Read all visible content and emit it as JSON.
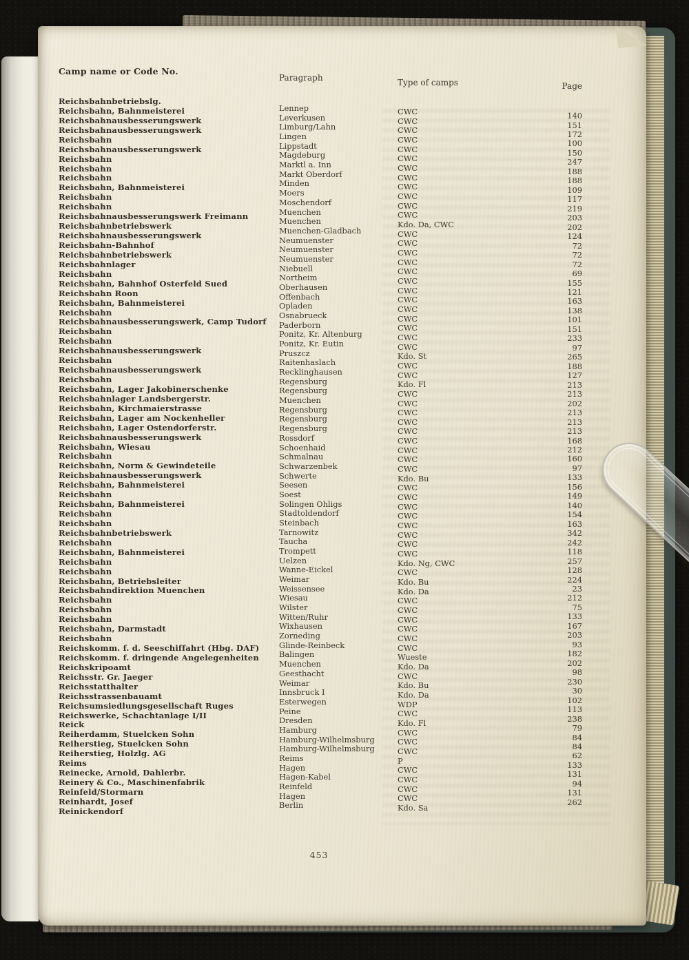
{
  "page": {
    "header": {
      "col_camp": "Camp name or Code No.",
      "col_paragraph": "Paragraph",
      "col_type": "Type of camps",
      "col_page": "Page"
    },
    "page_number": "453"
  },
  "table": {
    "rows": [
      {
        "camp": "Reichsbahnbetriebslg.",
        "paragraph": "Lennep",
        "type": "CWC",
        "page": "140"
      },
      {
        "camp": "Reichsbahn, Bahnmeisterei",
        "paragraph": "Leverkusen",
        "type": "CWC",
        "page": "151"
      },
      {
        "camp": "Reichsbahnausbesserungswerk",
        "paragraph": "Limburg/Lahn",
        "type": "CWC",
        "page": "172"
      },
      {
        "camp": "Reichsbahnausbesserungswerk",
        "paragraph": "Lingen",
        "type": "CWC",
        "page": "100"
      },
      {
        "camp": "Reichsbahn",
        "paragraph": "Lippstadt",
        "type": "CWC",
        "page": "150"
      },
      {
        "camp": "Reichsbahnausbesserungswerk",
        "paragraph": "Magdeburg",
        "type": "CWC",
        "page": "247"
      },
      {
        "camp": "Reichsbahn",
        "paragraph": "Marktl a. Inn",
        "type": "CWC",
        "page": "188"
      },
      {
        "camp": "Reichsbahn",
        "paragraph": "Markt Oberdorf",
        "type": "CWC",
        "page": "188"
      },
      {
        "camp": "Reichsbahn",
        "paragraph": "Minden",
        "type": "CWC",
        "page": "109"
      },
      {
        "camp": "Reichsbahn, Bahnmeisterei",
        "paragraph": "Moers",
        "type": "CWC",
        "page": "117"
      },
      {
        "camp": "Reichsbahn",
        "paragraph": "Moschendorf",
        "type": "CWC",
        "page": "219"
      },
      {
        "camp": "Reichsbahn",
        "paragraph": "Muenchen",
        "type": "CWC",
        "page": "203"
      },
      {
        "camp": "Reichsbahnausbesserungswerk Freimann",
        "paragraph": "Muenchen",
        "type": "Kdo. Da, CWC",
        "page": "202"
      },
      {
        "camp": "Reichsbahnbetriebswerk",
        "paragraph": "Muenchen-Gladbach",
        "type": "CWC",
        "page": "124"
      },
      {
        "camp": "Reichsbahnausbesserungswerk",
        "paragraph": "Neumuenster",
        "type": "CWC",
        "page": "72"
      },
      {
        "camp": "Reichsbahn-Bahnhof",
        "paragraph": "Neumuenster",
        "type": "CWC",
        "page": "72"
      },
      {
        "camp": "Reichsbahnbetriebswerk",
        "paragraph": "Neumuenster",
        "type": "CWC",
        "page": "72"
      },
      {
        "camp": "Reichsbahnlager",
        "paragraph": "Niebuell",
        "type": "CWC",
        "page": "69"
      },
      {
        "camp": "Reichsbahn",
        "paragraph": "Northeim",
        "type": "CWC",
        "page": "155"
      },
      {
        "camp": "Reichsbahn, Bahnhof Osterfeld Sued",
        "paragraph": "Oberhausen",
        "type": "CWC",
        "page": "121"
      },
      {
        "camp": "Reichsbahn Roon",
        "paragraph": "Offenbach",
        "type": "CWC",
        "page": "163"
      },
      {
        "camp": "Reichsbahn, Bahnmeisterei",
        "paragraph": "Opladen",
        "type": "CWC",
        "page": "138"
      },
      {
        "camp": "Reichsbahn",
        "paragraph": "Osnabrueck",
        "type": "CWC",
        "page": "101"
      },
      {
        "camp": "Reichsbahnausbesserungswerk, Camp Tudorf",
        "paragraph": "Paderborn",
        "type": "CWC",
        "page": "151"
      },
      {
        "camp": "Reichsbahn",
        "paragraph": "Ponitz, Kr. Altenburg",
        "type": "CWC",
        "page": "233"
      },
      {
        "camp": "Reichsbahn",
        "paragraph": "Ponitz, Kr. Eutin",
        "type": "CWC",
        "page": "97"
      },
      {
        "camp": "Reichsbahnausbesserungswerk",
        "paragraph": "Pruszcz",
        "type": "Kdo. St",
        "page": "265"
      },
      {
        "camp": "Reichsbahn",
        "paragraph": "Raitenhaslach",
        "type": "CWC",
        "page": "188"
      },
      {
        "camp": "Reichsbahnausbesserungswerk",
        "paragraph": "Recklinghausen",
        "type": "CWC",
        "page": "127"
      },
      {
        "camp": "Reichsbahn",
        "paragraph": "Regensburg",
        "type": "Kdo. Fl",
        "page": "213"
      },
      {
        "camp": "Reichsbahn, Lager Jakobinerschenke",
        "paragraph": "Regensburg",
        "type": "CWC",
        "page": "213"
      },
      {
        "camp": "Reichsbahnlager Landsbergerstr.",
        "paragraph": "Muenchen",
        "type": "CWC",
        "page": "202"
      },
      {
        "camp": "Reichsbahn, Kirchmaierstrasse",
        "paragraph": "Regensburg",
        "type": "CWC",
        "page": "213"
      },
      {
        "camp": "Reichsbahn, Lager am Nockenheller",
        "paragraph": "Regensburg",
        "type": "CWC",
        "page": "213"
      },
      {
        "camp": "Reichsbahn, Lager Ostendorferstr.",
        "paragraph": "Regensburg",
        "type": "CWC",
        "page": "213"
      },
      {
        "camp": "Reichsbahnausbesserungswerk",
        "paragraph": "Rossdorf",
        "type": "CWC",
        "page": "168"
      },
      {
        "camp": "Reichsbahn, Wiesau",
        "paragraph": "Schoenhaid",
        "type": "CWC",
        "page": "212"
      },
      {
        "camp": "Reichsbahn",
        "paragraph": "Schmalnau",
        "type": "CWC",
        "page": "160"
      },
      {
        "camp": "Reichsbahn, Norm & Gewindeteile",
        "paragraph": "Schwarzenbek",
        "type": "CWC",
        "page": "97"
      },
      {
        "camp": "Reichsbahnausbesserungswerk",
        "paragraph": "Schwerte",
        "type": "Kdo. Bu",
        "page": "133"
      },
      {
        "camp": "Reichsbahn, Bahnmeisterei",
        "paragraph": "Seesen",
        "type": "CWC",
        "page": "156"
      },
      {
        "camp": "Reichsbahn",
        "paragraph": "Soest",
        "type": "CWC",
        "page": "149"
      },
      {
        "camp": "Reichsbahn, Bahnmeisterei",
        "paragraph": "Solingen Ohligs",
        "type": "CWC",
        "page": "140"
      },
      {
        "camp": "Reichsbahn",
        "paragraph": "Stadtoldendorf",
        "type": "CWC",
        "page": "154"
      },
      {
        "camp": "Reichsbahn",
        "paragraph": "Steinbach",
        "type": "CWC",
        "page": "163"
      },
      {
        "camp": "Reichsbahnbetriebswerk",
        "paragraph": "Tarnowitz",
        "type": "CWC",
        "page": "342"
      },
      {
        "camp": "Reichsbahn",
        "paragraph": "Taucha",
        "type": "CWC",
        "page": "242"
      },
      {
        "camp": "Reichsbahn, Bahnmeisterei",
        "paragraph": "Trompett",
        "type": "CWC",
        "page": "118"
      },
      {
        "camp": "Reichsbahn",
        "paragraph": "Uelzen",
        "type": "Kdo. Ng, CWC",
        "page": "257"
      },
      {
        "camp": "Reichsbahn",
        "paragraph": "Wanne-Eickel",
        "type": "CWC",
        "page": "128"
      },
      {
        "camp": "Reichsbahn, Betriebsleiter",
        "paragraph": "Weimar",
        "type": "Kdo. Bu",
        "page": "224"
      },
      {
        "camp": "Reichsbahndirektion Muenchen",
        "paragraph": "Weissensee",
        "type": "Kdo. Da",
        "page": "23"
      },
      {
        "camp": "Reichsbahn",
        "paragraph": "Wiesau",
        "type": "CWC",
        "page": "212"
      },
      {
        "camp": "Reichsbahn",
        "paragraph": "Wilster",
        "type": "CWC",
        "page": "75"
      },
      {
        "camp": "Reichsbahn",
        "paragraph": "Witten/Ruhr",
        "type": "CWC",
        "page": "133"
      },
      {
        "camp": "Reichsbahn, Darmstadt",
        "paragraph": "Wixhausen",
        "type": "CWC",
        "page": "167"
      },
      {
        "camp": "Reichsbahn",
        "paragraph": "Zorneding",
        "type": "CWC",
        "page": "203"
      },
      {
        "camp": "Reichskomm. f. d. Seeschiffahrt (Hbg. DAF)",
        "paragraph": "Glinde-Reinbeck",
        "type": "CWC",
        "page": "93"
      },
      {
        "camp": "Reichskomm. f. dringende Angelegenheiten",
        "paragraph": "Balingen",
        "type": "Wueste",
        "page": "182"
      },
      {
        "camp": "Reichskripoamt",
        "paragraph": "Muenchen",
        "type": "Kdo. Da",
        "page": "202"
      },
      {
        "camp": "Reichsstr. Gr. Jaeger",
        "paragraph": "Geesthacht",
        "type": "CWC",
        "page": "98"
      },
      {
        "camp": "Reichsstatthalter",
        "paragraph": "Weimar",
        "type": "Kdo. Bu",
        "page": "230"
      },
      {
        "camp": "Reichsstrassenbauamt",
        "paragraph": "Innsbruck I",
        "type": "Kdo. Da",
        "page": "30"
      },
      {
        "camp": "Reichsumsiedlungsgesellschaft Ruges",
        "paragraph": "Esterwegen",
        "type": "WDP",
        "page": "102"
      },
      {
        "camp": "Reichswerke, Schachtanlage I/II",
        "paragraph": "Peine",
        "type": "CWC",
        "page": "113"
      },
      {
        "camp": "Reick",
        "paragraph": "Dresden",
        "type": "Kdo. Fl",
        "page": "238"
      },
      {
        "camp": "Reiherdamm, Stuelcken Sohn",
        "paragraph": "Hamburg",
        "type": "CWC",
        "page": "79"
      },
      {
        "camp": "Reiherstieg, Stuelcken Sohn",
        "paragraph": "Hamburg-Wilhelmsburg",
        "type": "CWC",
        "page": "84"
      },
      {
        "camp": "Reiherstieg, Holzlg. AG",
        "paragraph": "Hamburg-Wilhelmsburg",
        "type": "CWC",
        "page": "84"
      },
      {
        "camp": "Reims",
        "paragraph": "Reims",
        "type": "P",
        "page": "62"
      },
      {
        "camp": "Reinecke, Arnold, Dahlerbr.",
        "paragraph": "Hagen",
        "type": "CWC",
        "page": "133"
      },
      {
        "camp": "Reinery & Co., Maschinenfabrik",
        "paragraph": "Hagen-Kabel",
        "type": "CWC",
        "page": "131"
      },
      {
        "camp": "Reinfeld/Stormarn",
        "paragraph": "Reinfeld",
        "type": "CWC",
        "page": "94"
      },
      {
        "camp": "Reinhardt, Josef",
        "paragraph": "Hagen",
        "type": "CWC",
        "page": "131"
      },
      {
        "camp": "Reinickendorf",
        "paragraph": "Berlin",
        "type": "Kdo. Sa",
        "page": "262"
      }
    ]
  },
  "colors": {
    "background": "#14120f",
    "paper": "#ece7d6",
    "cover_green": "#43514b",
    "fabric_edge": "#8d8372",
    "ink": "#3a362c"
  }
}
